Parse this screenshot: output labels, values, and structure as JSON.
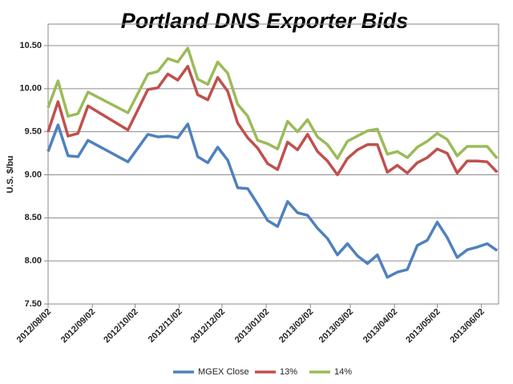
{
  "chart_data": {
    "type": "line",
    "title": "Portland DNS Exporter Bids",
    "y_label": "U.S. $/bu",
    "x": [
      "2012/08/02",
      "2012/08/09",
      "2012/08/16",
      "2012/08/23",
      "2012/08/30",
      "2012/09/27",
      "2012/10/11",
      "2012/10/18",
      "2012/10/25",
      "2012/11/01",
      "2012/11/08",
      "2012/11/15",
      "2012/11/22",
      "2012/11/29",
      "2012/12/06",
      "2012/12/13",
      "2012/12/20",
      "2012/12/27",
      "2013/01/03",
      "2013/01/10",
      "2013/01/17",
      "2013/01/24",
      "2013/01/31",
      "2013/02/07",
      "2013/02/14",
      "2013/02/21",
      "2013/02/28",
      "2013/03/07",
      "2013/03/14",
      "2013/03/21",
      "2013/03/28",
      "2013/04/04",
      "2013/04/11",
      "2013/04/18",
      "2013/04/25",
      "2013/05/02",
      "2013/05/09",
      "2013/05/16",
      "2013/05/23",
      "2013/05/30",
      "2013/06/06",
      "2013/06/13"
    ],
    "series": [
      {
        "name": "MGEX Close",
        "color": "#4f81bd",
        "values": [
          9.27,
          9.58,
          9.22,
          9.21,
          9.4,
          9.15,
          9.47,
          9.44,
          9.45,
          9.43,
          9.59,
          9.21,
          9.14,
          9.32,
          9.17,
          8.85,
          8.84,
          8.66,
          8.47,
          8.4,
          8.69,
          8.56,
          8.53,
          8.38,
          8.26,
          8.07,
          8.2,
          8.06,
          7.97,
          8.07,
          7.81,
          7.87,
          7.9,
          8.18,
          8.24,
          8.45,
          8.27,
          8.04,
          8.13,
          8.16,
          8.2,
          8.12
        ]
      },
      {
        "name": "13%",
        "color": "#c0504d",
        "values": [
          9.5,
          9.85,
          9.45,
          9.48,
          9.8,
          9.52,
          9.99,
          10.01,
          10.17,
          10.1,
          10.26,
          9.93,
          9.87,
          10.13,
          9.97,
          9.6,
          9.43,
          9.31,
          9.13,
          9.06,
          9.38,
          9.29,
          9.47,
          9.27,
          9.16,
          9.0,
          9.19,
          9.29,
          9.35,
          9.35,
          9.03,
          9.11,
          9.02,
          9.14,
          9.2,
          9.3,
          9.25,
          9.02,
          9.16,
          9.16,
          9.15,
          9.03
        ]
      },
      {
        "name": "14%",
        "color": "#9bbb59",
        "values": [
          9.78,
          10.09,
          9.68,
          9.71,
          9.96,
          9.72,
          10.17,
          10.2,
          10.35,
          10.31,
          10.47,
          10.11,
          10.05,
          10.31,
          10.18,
          9.82,
          9.68,
          9.4,
          9.36,
          9.3,
          9.62,
          9.5,
          9.64,
          9.44,
          9.35,
          9.19,
          9.39,
          9.45,
          9.51,
          9.53,
          9.24,
          9.27,
          9.2,
          9.32,
          9.39,
          9.48,
          9.41,
          9.22,
          9.33,
          9.33,
          9.33,
          9.19
        ]
      }
    ],
    "xlim": [
      "2012/08/02",
      "2013/06/14"
    ],
    "xticks": [
      "2012/08/02",
      "2012/09/02",
      "2012/10/02",
      "2012/11/02",
      "2012/12/02",
      "2013/01/02",
      "2013/02/02",
      "2013/03/02",
      "2013/04/02",
      "2013/05/02",
      "2013/06/02"
    ],
    "ylim": [
      7.5,
      10.75
    ],
    "yticks": [
      {
        "value": 7.5,
        "label": "7.50"
      },
      {
        "value": 8,
        "label": "8.00"
      },
      {
        "value": 8.5,
        "label": "8.50"
      },
      {
        "value": 9,
        "label": "9.00"
      },
      {
        "value": 9.5,
        "label": "9.50"
      },
      {
        "value": 10,
        "label": "10.00"
      },
      {
        "value": 10.5,
        "label": "10.50"
      }
    ],
    "grid": true,
    "legend": "bottom"
  }
}
